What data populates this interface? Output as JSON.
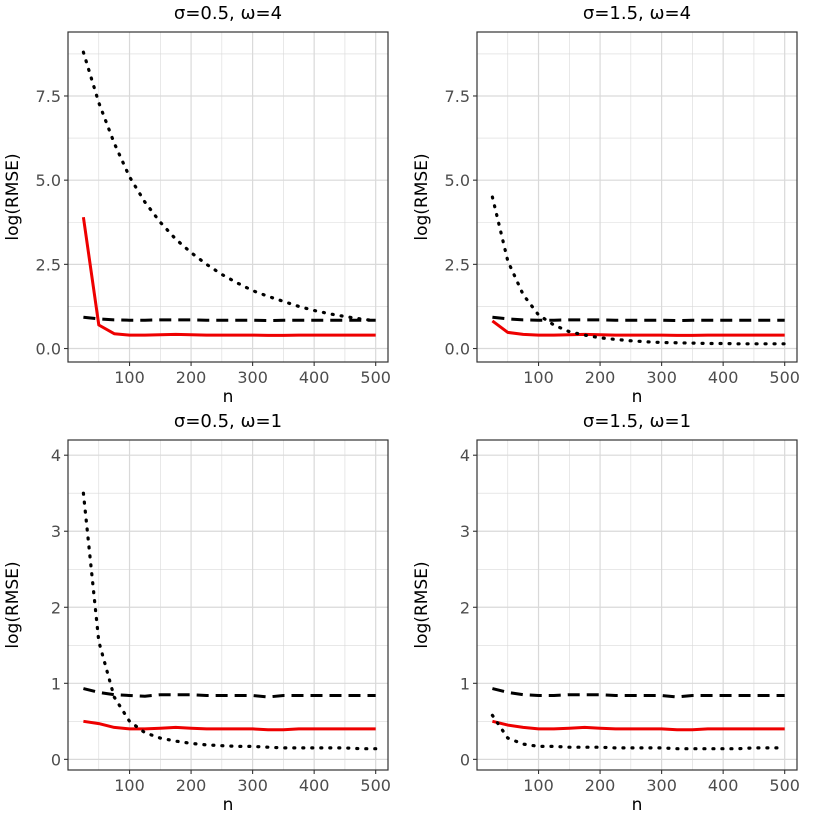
{
  "colors": {
    "estimator_solid": "#ee0000",
    "estimator_dashed": "#000000",
    "estimator_dotted": "#000000",
    "grid": "#d9d9d9",
    "panel_border": "#333333"
  },
  "chart_data": [
    {
      "type": "line",
      "title": "σ=0.5, ω=4",
      "xlabel": "n",
      "ylabel": "log(RMSE)",
      "xlim": [
        0,
        520
      ],
      "ylim": [
        -0.4,
        9.4
      ],
      "xticks": [
        100,
        200,
        300,
        400,
        500
      ],
      "xtick_labels": [
        "100",
        "200",
        "300",
        "400",
        "500"
      ],
      "yticks": [
        0,
        2.5,
        5,
        7.5
      ],
      "ytick_labels": [
        "0.0",
        "2.5",
        "5.0",
        "7.5"
      ],
      "x": [
        25,
        50,
        75,
        100,
        125,
        150,
        175,
        200,
        225,
        250,
        275,
        300,
        325,
        350,
        375,
        400,
        425,
        450,
        475,
        500
      ],
      "series": [
        {
          "name": "solid",
          "style": "solid",
          "values": [
            3.9,
            0.7,
            0.44,
            0.4,
            0.4,
            0.41,
            0.42,
            0.41,
            0.4,
            0.4,
            0.4,
            0.4,
            0.39,
            0.39,
            0.4,
            0.4,
            0.4,
            0.4,
            0.4,
            0.4
          ]
        },
        {
          "name": "dashed",
          "style": "dashed",
          "values": [
            0.93,
            0.88,
            0.85,
            0.84,
            0.84,
            0.85,
            0.85,
            0.85,
            0.84,
            0.84,
            0.84,
            0.84,
            0.83,
            0.84,
            0.84,
            0.84,
            0.84,
            0.84,
            0.84,
            0.84
          ]
        },
        {
          "name": "dotted",
          "style": "dotted",
          "values": [
            8.8,
            7.3,
            6.1,
            5.1,
            4.35,
            3.75,
            3.25,
            2.85,
            2.5,
            2.2,
            1.95,
            1.72,
            1.55,
            1.4,
            1.25,
            1.13,
            1.03,
            0.95,
            0.88,
            0.82
          ]
        }
      ]
    },
    {
      "type": "line",
      "title": "σ=1.5, ω=4",
      "xlabel": "n",
      "ylabel": "log(RMSE)",
      "xlim": [
        0,
        520
      ],
      "ylim": [
        -0.4,
        9.4
      ],
      "xticks": [
        100,
        200,
        300,
        400,
        500
      ],
      "xtick_labels": [
        "100",
        "200",
        "300",
        "400",
        "500"
      ],
      "yticks": [
        0,
        2.5,
        5,
        7.5
      ],
      "ytick_labels": [
        "0.0",
        "2.5",
        "5.0",
        "7.5"
      ],
      "x": [
        25,
        50,
        75,
        100,
        125,
        150,
        175,
        200,
        225,
        250,
        275,
        300,
        325,
        350,
        375,
        400,
        425,
        450,
        475,
        500
      ],
      "series": [
        {
          "name": "solid",
          "style": "solid",
          "values": [
            0.82,
            0.48,
            0.42,
            0.4,
            0.4,
            0.41,
            0.42,
            0.41,
            0.4,
            0.4,
            0.4,
            0.4,
            0.39,
            0.39,
            0.4,
            0.4,
            0.4,
            0.4,
            0.4,
            0.4
          ]
        },
        {
          "name": "dashed",
          "style": "dashed",
          "values": [
            0.93,
            0.88,
            0.85,
            0.84,
            0.84,
            0.85,
            0.85,
            0.85,
            0.84,
            0.84,
            0.84,
            0.84,
            0.83,
            0.84,
            0.84,
            0.84,
            0.84,
            0.84,
            0.84,
            0.84
          ]
        },
        {
          "name": "dotted",
          "style": "dotted",
          "values": [
            4.5,
            2.6,
            1.6,
            1.0,
            0.7,
            0.5,
            0.4,
            0.32,
            0.27,
            0.23,
            0.2,
            0.18,
            0.17,
            0.16,
            0.15,
            0.15,
            0.14,
            0.14,
            0.14,
            0.14
          ]
        }
      ]
    },
    {
      "type": "line",
      "title": "σ=0.5, ω=1",
      "xlabel": "n",
      "ylabel": "log(RMSE)",
      "xlim": [
        0,
        520
      ],
      "ylim": [
        -0.14,
        4.2
      ],
      "xticks": [
        100,
        200,
        300,
        400,
        500
      ],
      "xtick_labels": [
        "100",
        "200",
        "300",
        "400",
        "500"
      ],
      "yticks": [
        0,
        1,
        2,
        3,
        4
      ],
      "ytick_labels": [
        "0",
        "1",
        "2",
        "3",
        "4"
      ],
      "x": [
        25,
        50,
        75,
        100,
        125,
        150,
        175,
        200,
        225,
        250,
        275,
        300,
        325,
        350,
        375,
        400,
        425,
        450,
        475,
        500
      ],
      "series": [
        {
          "name": "solid",
          "style": "solid",
          "values": [
            0.5,
            0.47,
            0.42,
            0.4,
            0.4,
            0.41,
            0.42,
            0.41,
            0.4,
            0.4,
            0.4,
            0.4,
            0.39,
            0.39,
            0.4,
            0.4,
            0.4,
            0.4,
            0.4,
            0.4
          ]
        },
        {
          "name": "dashed",
          "style": "dashed",
          "values": [
            0.93,
            0.88,
            0.85,
            0.84,
            0.83,
            0.85,
            0.85,
            0.85,
            0.84,
            0.84,
            0.84,
            0.84,
            0.82,
            0.84,
            0.84,
            0.84,
            0.84,
            0.84,
            0.84,
            0.84
          ]
        },
        {
          "name": "dotted",
          "style": "dotted",
          "values": [
            3.5,
            1.55,
            0.82,
            0.5,
            0.35,
            0.28,
            0.24,
            0.21,
            0.19,
            0.18,
            0.17,
            0.17,
            0.16,
            0.15,
            0.15,
            0.15,
            0.15,
            0.15,
            0.14,
            0.14
          ]
        }
      ]
    },
    {
      "type": "line",
      "title": "σ=1.5, ω=1",
      "xlabel": "n",
      "ylabel": "log(RMSE)",
      "xlim": [
        0,
        520
      ],
      "ylim": [
        -0.14,
        4.2
      ],
      "xticks": [
        100,
        200,
        300,
        400,
        500
      ],
      "xtick_labels": [
        "100",
        "200",
        "300",
        "400",
        "500"
      ],
      "yticks": [
        0,
        1,
        2,
        3,
        4
      ],
      "ytick_labels": [
        "0",
        "1",
        "2",
        "3",
        "4"
      ],
      "x": [
        25,
        50,
        75,
        100,
        125,
        150,
        175,
        200,
        225,
        250,
        275,
        300,
        325,
        350,
        375,
        400,
        425,
        450,
        475,
        500
      ],
      "series": [
        {
          "name": "solid",
          "style": "solid",
          "values": [
            0.5,
            0.45,
            0.42,
            0.4,
            0.4,
            0.41,
            0.42,
            0.41,
            0.4,
            0.4,
            0.4,
            0.4,
            0.39,
            0.39,
            0.4,
            0.4,
            0.4,
            0.4,
            0.4,
            0.4
          ]
        },
        {
          "name": "dashed",
          "style": "dashed",
          "values": [
            0.93,
            0.88,
            0.85,
            0.84,
            0.84,
            0.85,
            0.85,
            0.85,
            0.84,
            0.84,
            0.84,
            0.84,
            0.82,
            0.84,
            0.84,
            0.84,
            0.84,
            0.84,
            0.84,
            0.84
          ]
        },
        {
          "name": "dotted",
          "style": "dotted",
          "values": [
            0.58,
            0.28,
            0.2,
            0.17,
            0.17,
            0.16,
            0.16,
            0.16,
            0.15,
            0.15,
            0.15,
            0.15,
            0.14,
            0.14,
            0.14,
            0.14,
            0.14,
            0.15,
            0.15,
            0.15
          ]
        }
      ]
    }
  ]
}
